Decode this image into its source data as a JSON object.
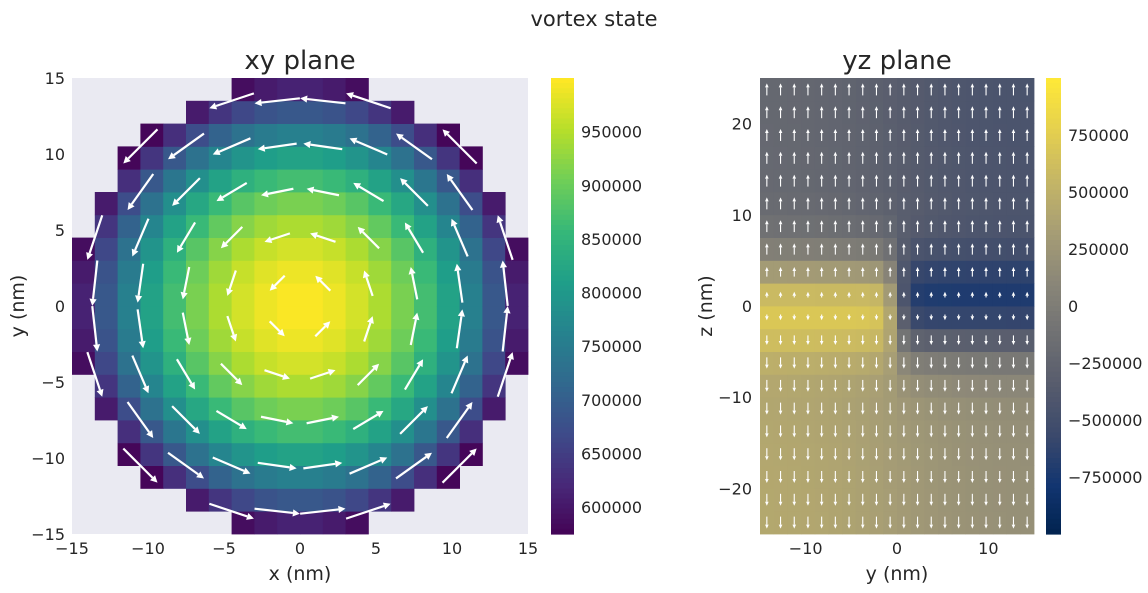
{
  "suptitle": "vortex state",
  "chart_data": [
    {
      "type": "heatmap",
      "title": "xy plane",
      "xlabel": "x (nm)",
      "ylabel": "y (nm)",
      "xlim": [
        -15,
        15
      ],
      "ylim": [
        -15,
        15
      ],
      "xticks": [
        -15,
        -10,
        -5,
        0,
        5,
        10,
        15
      ],
      "yticks": [
        -15,
        -10,
        -5,
        0,
        5,
        10,
        15
      ],
      "xtick_labels": [
        "−15",
        "−10",
        "−5",
        "0",
        "5",
        "10",
        "15"
      ],
      "ytick_labels": [
        "−15",
        "−10",
        "−5",
        "0",
        "5",
        "10",
        "15"
      ],
      "disk_radius_nm": 15,
      "cell_size_nm": 1.5,
      "grid": true,
      "colormap": "viridis",
      "color_range": [
        575000,
        1000000
      ],
      "center_value": 1000000,
      "edge_value": 575000,
      "vector_field": "counter-clockwise vortex",
      "colorbar_ticks": [
        600000,
        650000,
        700000,
        750000,
        800000,
        850000,
        900000,
        950000
      ],
      "colorbar_labels": [
        "600000",
        "650000",
        "700000",
        "750000",
        "800000",
        "850000",
        "900000",
        "950000"
      ]
    },
    {
      "type": "heatmap",
      "title": "yz plane",
      "xlabel": "y (nm)",
      "ylabel": "z (nm)",
      "xlim": [
        -15,
        15
      ],
      "ylim": [
        -25,
        25
      ],
      "xticks": [
        -10,
        0,
        10
      ],
      "yticks": [
        -20,
        -10,
        0,
        10,
        20
      ],
      "xtick_labels": [
        "−10",
        "0",
        "10"
      ],
      "ytick_labels": [
        "−20",
        "−10",
        "0",
        "10",
        "20"
      ],
      "cell_size_nm": [
        1.5,
        2.5
      ],
      "colormap": "cividis",
      "color_range": [
        -1000000,
        1000000
      ],
      "vector_field": "z-component: up for z>0, down for z<0",
      "colorbar_ticks": [
        750000,
        500000,
        250000,
        0,
        -250000,
        -500000,
        -750000
      ],
      "colorbar_labels": [
        "750000",
        "500000",
        "250000",
        "0",
        "−250000",
        "−500000",
        "−750000"
      ]
    }
  ]
}
